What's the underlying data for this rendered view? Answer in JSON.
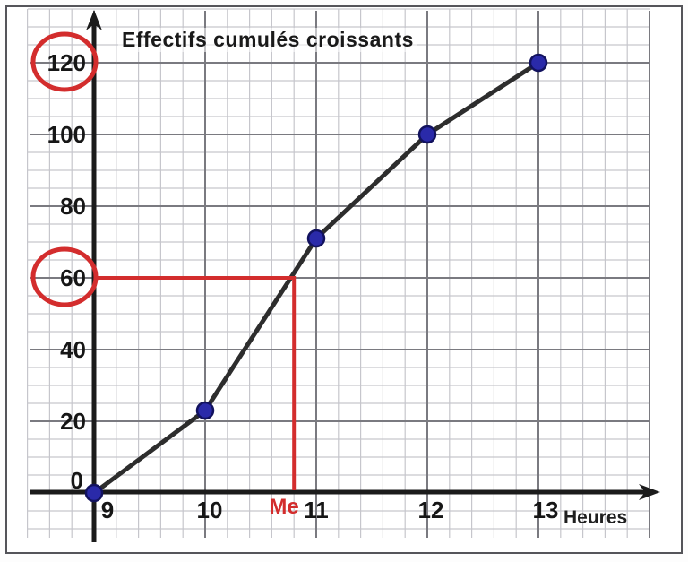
{
  "chart_data": {
    "type": "line",
    "title": "Effectifs cumulés croissants",
    "xlabel": "Heures",
    "ylabel": "",
    "x": [
      9,
      10,
      11,
      12,
      13
    ],
    "series": [
      {
        "name": "Effectifs cumulés croissants",
        "values": [
          0,
          23,
          71,
          100,
          120
        ]
      }
    ],
    "x_tick_labels": [
      "9",
      "10",
      "11",
      "12",
      "13"
    ],
    "y_tick_values": [
      0,
      20,
      40,
      60,
      80,
      100,
      120
    ],
    "y_tick_labels": [
      "0",
      "20",
      "40",
      "60",
      "80",
      "100",
      "120"
    ],
    "xlim": [
      9,
      14
    ],
    "ylim": [
      0,
      135
    ],
    "grid": true,
    "legend": "none",
    "annotations": {
      "median_label": "Me",
      "median_x": 10.8,
      "median_y": 60,
      "circled_y_tick_values": [
        120,
        60
      ],
      "description": "red horizontal line from y=60 to the curve, then red vertical drop line down to the x-axis at Me"
    },
    "colors": {
      "curve": "#2d2d2d",
      "point_fill": "#2a2aa9",
      "point_stroke": "#12125e",
      "annotation_red": "#d32d2d",
      "grid_minor": "#c6c6cc",
      "grid_major": "#7a7a80",
      "axis": "#1b1b1b",
      "text": "#161616",
      "frame": "#55555a"
    }
  }
}
